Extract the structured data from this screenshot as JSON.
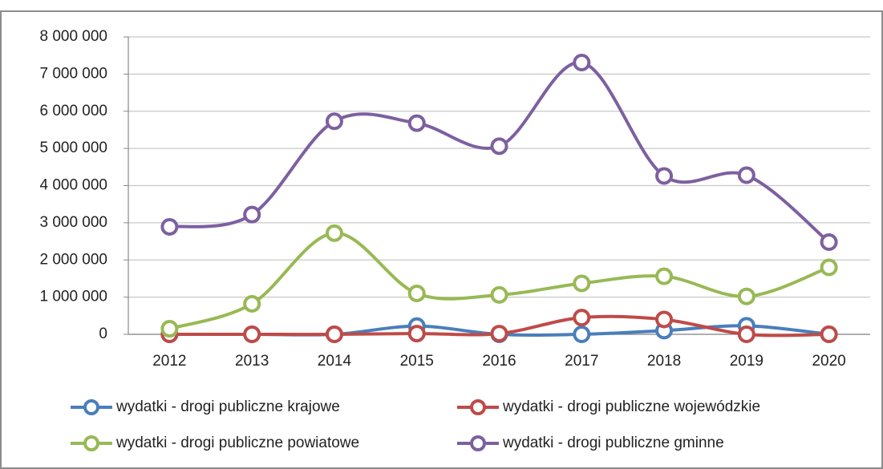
{
  "chart_data": {
    "type": "line",
    "categories": [
      "2012",
      "2013",
      "2014",
      "2015",
      "2016",
      "2017",
      "2018",
      "2019",
      "2020"
    ],
    "ylim": [
      0,
      8000000
    ],
    "yticks": [
      0,
      {
        "value": 1000000,
        "label": "1 000 000"
      },
      {
        "value": 2000000,
        "label": "2 000 000"
      },
      {
        "value": 3000000,
        "label": "3 000 000"
      },
      {
        "value": 4000000,
        "label": "4 000 000"
      },
      {
        "value": 5000000,
        "label": "5 000 000"
      },
      {
        "value": 6000000,
        "label": "6 000 000"
      },
      {
        "value": 7000000,
        "label": "7 000 000"
      },
      {
        "value": 8000000,
        "label": "8 000 000"
      }
    ],
    "grid": true,
    "smooth": true,
    "legend": "bottom",
    "series": [
      {
        "name": "wydatki - drogi publiczne krajowe",
        "color": "#4a7ebb",
        "values": [
          0,
          0,
          0,
          220000,
          0,
          0,
          100000,
          230000,
          0
        ]
      },
      {
        "name": "wydatki - drogi publiczne wojewódzkie",
        "color": "#be4b48",
        "values": [
          0,
          0,
          0,
          20000,
          20000,
          450000,
          400000,
          0,
          0
        ]
      },
      {
        "name": "wydatki - drogi publiczne powiatowe",
        "color": "#98b954",
        "values": [
          150000,
          820000,
          2720000,
          1100000,
          1060000,
          1370000,
          1560000,
          1020000,
          1800000
        ]
      },
      {
        "name": "wydatki - drogi publiczne gminne",
        "color": "#7d60a0",
        "values": [
          2890000,
          3220000,
          5730000,
          5680000,
          5060000,
          7310000,
          4260000,
          4280000,
          2480000
        ]
      }
    ]
  }
}
